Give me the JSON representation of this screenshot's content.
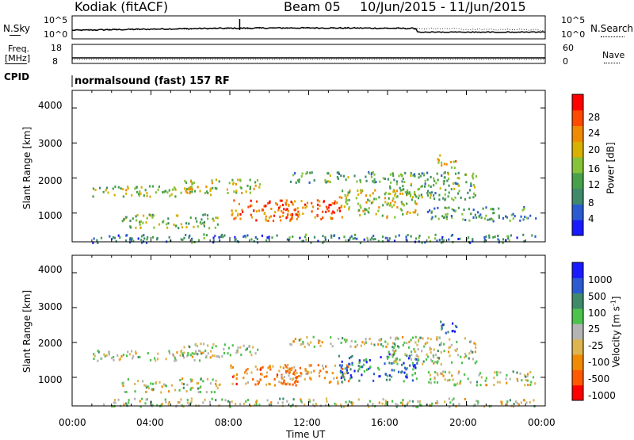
{
  "header": {
    "station": "Kodiak (fitACF)",
    "beam": "Beam 05",
    "date_range": "10/Jun/2015 - 11/Jun/2015"
  },
  "noise_panel": {
    "left_label": "N.Sky",
    "right_label": "N.Search",
    "ticks": [
      "10^5",
      "10^0"
    ]
  },
  "freq_panel": {
    "left_label_1": "Freq.",
    "left_label_2": "[MHz]",
    "left_ticks": [
      "18",
      "8"
    ],
    "right_label": "Nave",
    "right_ticks": [
      "60",
      "0"
    ]
  },
  "cpid": {
    "label": "CPID",
    "mode": "normalsound (fast) 157 RF"
  },
  "colors": {
    "scale_power": [
      "#1a1aff",
      "#2b5bd0",
      "#3f8a6a",
      "#47a04a",
      "#86c23a",
      "#d8b000",
      "#f08a00",
      "#ff4a00",
      "#ff0000"
    ],
    "scale_velocity": [
      "#1a1aff",
      "#2b5bd0",
      "#3f8a6a",
      "#4dc24d",
      "#b4b4b4",
      "#dcb450",
      "#f08a00",
      "#ff5a00",
      "#ff0000"
    ]
  },
  "chart_data": [
    {
      "type": "heatmap",
      "title": "Power",
      "ylabel": "Slant Range [km]",
      "ylim": [
        180,
        4500
      ],
      "xlim": [
        "00:00",
        "24:00"
      ],
      "yticks": [
        "1000",
        "2000",
        "3000",
        "4000"
      ],
      "colorbar": {
        "label": "Power [dB]",
        "ticks": [
          "4",
          "8",
          "12",
          "16",
          "20",
          "24",
          "28"
        ]
      },
      "scatter_bands": [
        {
          "t0": 1.0,
          "t1": 23.5,
          "r0": 180,
          "r1": 420,
          "level": 0.25
        },
        {
          "t0": 2.5,
          "t1": 7.5,
          "r0": 600,
          "r1": 1000,
          "level": 0.45
        },
        {
          "t0": 1.0,
          "t1": 7.0,
          "r0": 1500,
          "r1": 1800,
          "level": 0.5
        },
        {
          "t0": 5.5,
          "t1": 9.5,
          "r0": 1600,
          "r1": 2000,
          "level": 0.55
        },
        {
          "t0": 8.0,
          "t1": 11.5,
          "r0": 800,
          "r1": 1400,
          "level": 0.8
        },
        {
          "t0": 10.5,
          "t1": 14.0,
          "r0": 850,
          "r1": 1400,
          "level": 0.85
        },
        {
          "t0": 11.0,
          "t1": 16.5,
          "r0": 1900,
          "r1": 2200,
          "level": 0.35
        },
        {
          "t0": 13.5,
          "t1": 17.5,
          "r0": 900,
          "r1": 1700,
          "level": 0.55
        },
        {
          "t0": 16.0,
          "t1": 20.5,
          "r0": 1400,
          "r1": 2200,
          "level": 0.4
        },
        {
          "t0": 18.0,
          "t1": 23.5,
          "r0": 800,
          "r1": 1200,
          "level": 0.3
        },
        {
          "t0": 18.5,
          "t1": 19.5,
          "r0": 2300,
          "r1": 2700,
          "level": 0.6
        }
      ]
    },
    {
      "type": "heatmap",
      "title": "Velocity",
      "ylabel": "Slant Range [km]",
      "xlabel": "Time UT",
      "ylim": [
        180,
        4500
      ],
      "xlim": [
        "00:00",
        "24:00"
      ],
      "yticks": [
        "1000",
        "2000",
        "3000",
        "4000"
      ],
      "xticks": [
        "00:00",
        "04:00",
        "08:00",
        "12:00",
        "16:00",
        "20:00",
        "00:00"
      ],
      "colorbar": {
        "label": "Velocity [m s^-1]",
        "ticks": [
          "1000",
          "500",
          "100",
          "25",
          "-25",
          "-100",
          "-500",
          "-1000"
        ]
      },
      "scatter_bands": [
        {
          "t0": 1.0,
          "t1": 23.5,
          "r0": 180,
          "r1": 420,
          "level": 0.5
        },
        {
          "t0": 2.5,
          "t1": 7.5,
          "r0": 600,
          "r1": 1000,
          "level": 0.5
        },
        {
          "t0": 1.0,
          "t1": 7.0,
          "r0": 1500,
          "r1": 1800,
          "level": 0.5
        },
        {
          "t0": 5.5,
          "t1": 9.5,
          "r0": 1600,
          "r1": 2000,
          "level": 0.5
        },
        {
          "t0": 8.0,
          "t1": 11.5,
          "r0": 800,
          "r1": 1400,
          "level": 0.75
        },
        {
          "t0": 10.5,
          "t1": 14.0,
          "r0": 850,
          "r1": 1400,
          "level": 0.7
        },
        {
          "t0": 11.0,
          "t1": 16.5,
          "r0": 1900,
          "r1": 2200,
          "level": 0.5
        },
        {
          "t0": 13.5,
          "t1": 17.5,
          "r0": 900,
          "r1": 1700,
          "level": 0.2
        },
        {
          "t0": 16.0,
          "t1": 20.5,
          "r0": 1400,
          "r1": 2200,
          "level": 0.5
        },
        {
          "t0": 18.0,
          "t1": 23.5,
          "r0": 800,
          "r1": 1200,
          "level": 0.5
        },
        {
          "t0": 18.5,
          "t1": 19.5,
          "r0": 2300,
          "r1": 2700,
          "level": 0.15
        }
      ]
    }
  ]
}
